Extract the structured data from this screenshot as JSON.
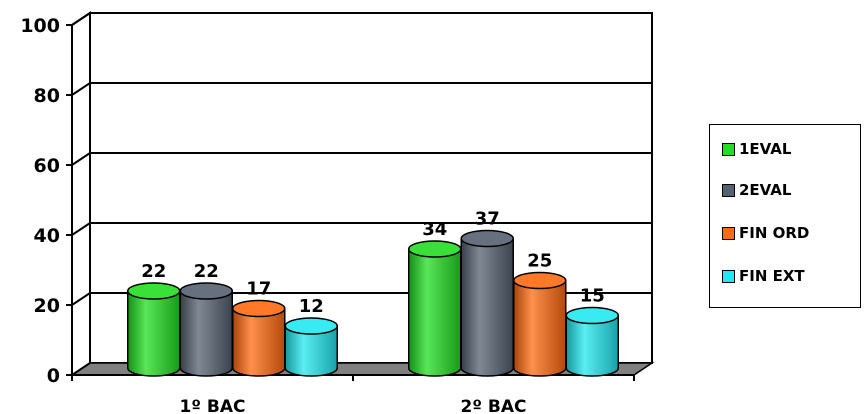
{
  "chart_data": {
    "type": "bar",
    "style": "3d-cylinder",
    "categories": [
      "1º BAC",
      "2º BAC"
    ],
    "series": [
      {
        "name": "1EVAL",
        "color": "#22dd22",
        "values": [
          22,
          34
        ]
      },
      {
        "name": "2EVAL",
        "color": "#556070",
        "values": [
          22,
          37
        ]
      },
      {
        "name": "FIN ORD",
        "color": "#ff6a10",
        "values": [
          17,
          25
        ]
      },
      {
        "name": "FIN EXT",
        "color": "#22e8f0",
        "values": [
          12,
          15
        ]
      }
    ],
    "ylim": [
      0,
      100
    ],
    "yticks": [
      "0",
      "20",
      "40",
      "60",
      "80",
      "100"
    ],
    "grid": true,
    "legend": "right"
  }
}
